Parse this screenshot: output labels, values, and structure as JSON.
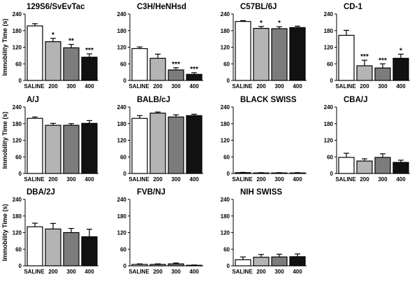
{
  "chart_data": {
    "type": "bar",
    "ylabel": "Immobility Time (s)",
    "ylim": [
      0,
      240
    ],
    "yticks": [
      0,
      60,
      120,
      180,
      240
    ],
    "categories": [
      "SALINE",
      "200",
      "300",
      "400"
    ],
    "bar_colors": [
      "#ffffff",
      "#b4b4b4",
      "#7c7c7c",
      "#111111"
    ],
    "panels": [
      {
        "title": "129S6/SvEvTac",
        "values": [
          197,
          140,
          118,
          84
        ],
        "errors": [
          8,
          12,
          12,
          12
        ],
        "marks": [
          "",
          "*",
          "**",
          "***"
        ]
      },
      {
        "title": "C3H/HeNHsd",
        "values": [
          115,
          80,
          38,
          22
        ],
        "errors": [
          6,
          15,
          8,
          6
        ],
        "marks": [
          "",
          "",
          "***",
          "***"
        ]
      },
      {
        "title": "C57BL/6J",
        "values": [
          213,
          188,
          187,
          191
        ],
        "errors": [
          3,
          7,
          7,
          5
        ],
        "marks": [
          "",
          "*",
          "*",
          ""
        ]
      },
      {
        "title": "CD-1",
        "values": [
          163,
          53,
          45,
          80
        ],
        "errors": [
          18,
          20,
          15,
          15
        ],
        "marks": [
          "",
          "***",
          "***",
          "*"
        ]
      },
      {
        "title": "A/J",
        "values": [
          199,
          174,
          174,
          181
        ],
        "errors": [
          5,
          7,
          6,
          10
        ],
        "marks": [
          "",
          "",
          "",
          ""
        ]
      },
      {
        "title": "BALB/cJ",
        "values": [
          199,
          218,
          204,
          209
        ],
        "errors": [
          10,
          4,
          8,
          5
        ],
        "marks": [
          "",
          "",
          "",
          ""
        ]
      },
      {
        "title": "BLACK SWISS",
        "values": [
          3,
          2,
          2,
          2
        ],
        "errors": [
          1,
          1,
          1,
          1
        ],
        "marks": [
          "",
          "",
          "",
          ""
        ]
      },
      {
        "title": "CBA/J",
        "values": [
          58,
          45,
          58,
          40
        ],
        "errors": [
          15,
          8,
          13,
          8
        ],
        "marks": [
          "",
          "",
          "",
          ""
        ]
      },
      {
        "title": "DBA/2J",
        "values": [
          141,
          133,
          120,
          105
        ],
        "errors": [
          13,
          20,
          15,
          27
        ],
        "marks": [
          "",
          "",
          "",
          ""
        ]
      },
      {
        "title": "FVB/NJ",
        "values": [
          5,
          5,
          7,
          2
        ],
        "errors": [
          2,
          2,
          3,
          1
        ],
        "marks": [
          "",
          "",
          "",
          ""
        ]
      },
      {
        "title": "NIH SWISS",
        "values": [
          22,
          31,
          32,
          33
        ],
        "errors": [
          10,
          10,
          10,
          10
        ],
        "marks": [
          "",
          "",
          "",
          ""
        ]
      }
    ]
  }
}
